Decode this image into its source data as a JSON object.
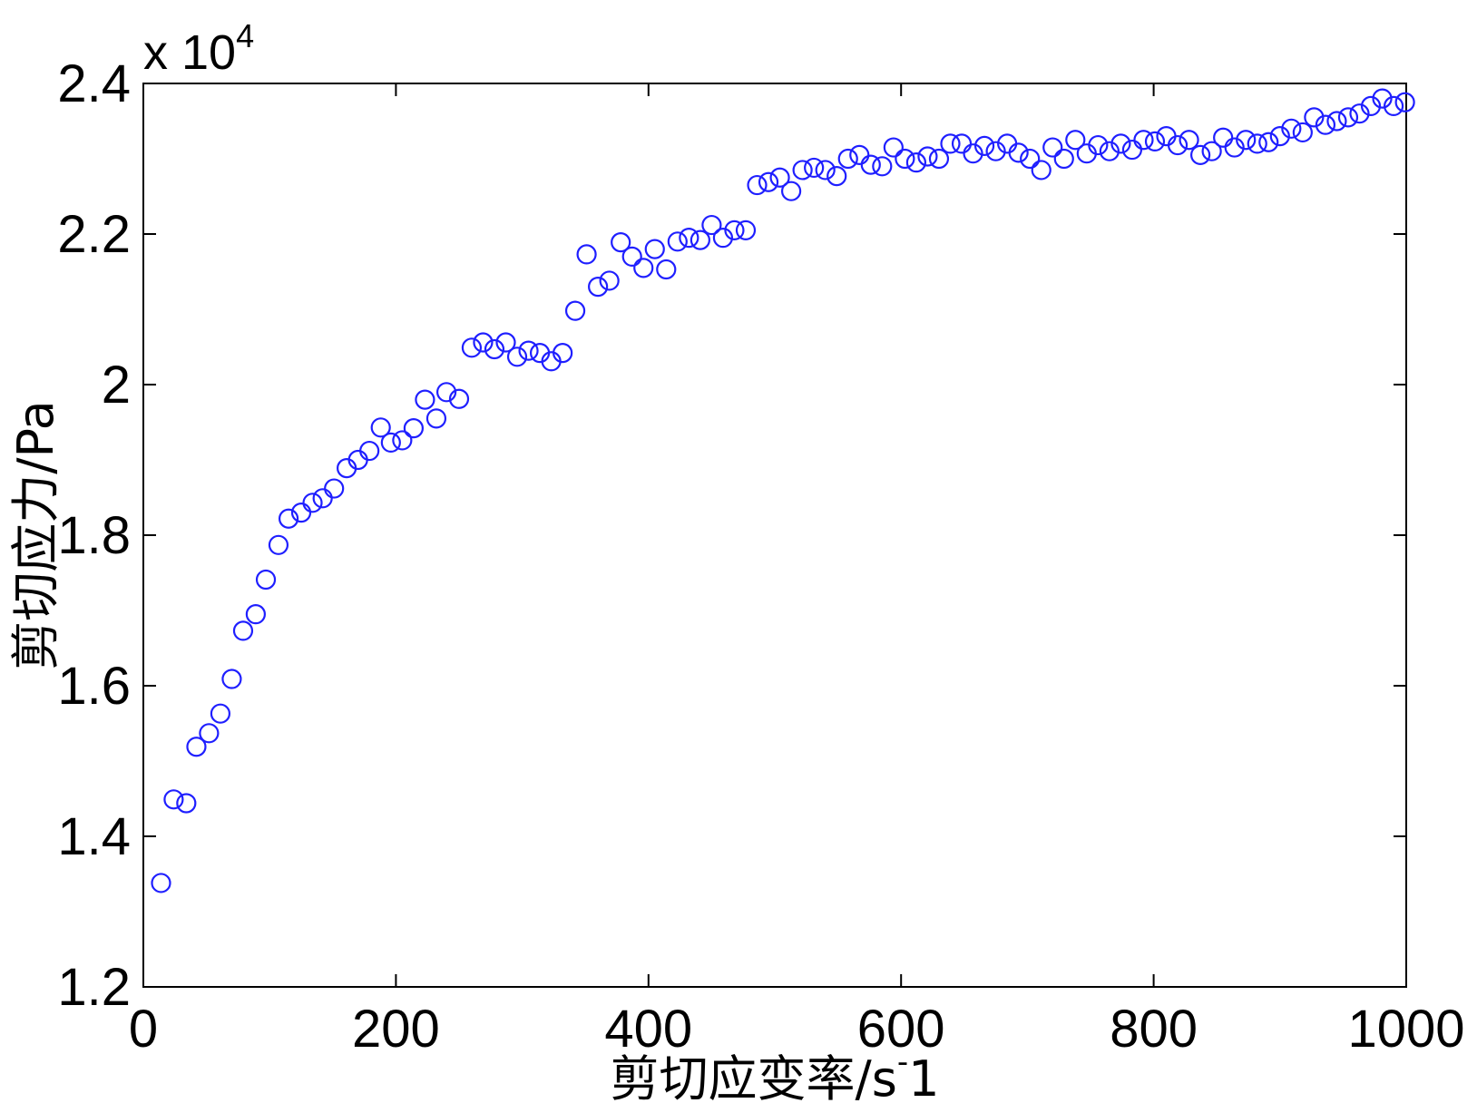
{
  "chart_data": {
    "type": "scatter",
    "title": "",
    "xlabel": "剪切应变率/s-1",
    "xlabel_main": "剪切应变率/s",
    "xlabel_sup": "-",
    "xlabel_tail": "1",
    "ylabel": "剪切应力/Pa",
    "y_exponent_prefix": "x 10",
    "y_exponent_power": "4",
    "xlim": [
      0,
      1000
    ],
    "ylim": [
      1.2,
      2.4
    ],
    "xticks": [
      "0",
      "200",
      "400",
      "600",
      "800",
      "1000"
    ],
    "yticks": [
      "1.2",
      "1.4",
      "1.6",
      "1.8",
      "2",
      "2.2",
      "2.4"
    ],
    "grid": false,
    "marker": "circle-open",
    "marker_color": "#1f1fff",
    "series": [
      {
        "x": [
          14,
          24,
          34,
          42,
          52,
          61,
          70,
          79,
          89,
          97,
          107,
          115,
          125,
          134,
          142,
          151,
          161,
          170,
          179,
          188,
          196,
          205,
          214,
          223,
          232,
          240,
          250,
          260,
          269,
          278,
          287,
          296,
          305,
          314,
          323,
          332,
          342,
          351,
          360,
          369,
          378,
          387,
          396,
          405,
          414,
          423,
          432,
          441,
          450,
          459,
          468,
          477,
          486,
          495,
          504,
          513,
          522,
          531,
          540,
          549,
          558,
          567,
          576,
          585,
          594,
          603,
          612,
          621,
          630,
          639,
          648,
          657,
          666,
          675,
          684,
          693,
          702,
          711,
          720,
          729,
          738,
          747,
          756,
          765,
          774,
          783,
          792,
          801,
          810,
          819,
          828,
          837,
          846,
          855,
          864,
          873,
          882,
          891,
          900,
          909,
          918,
          927,
          936,
          945,
          954,
          963,
          972,
          981,
          990,
          999
        ],
        "y": [
          1.338,
          1.449,
          1.444,
          1.519,
          1.537,
          1.563,
          1.609,
          1.673,
          1.695,
          1.741,
          1.787,
          1.822,
          1.83,
          1.843,
          1.849,
          1.862,
          1.889,
          1.9,
          1.912,
          1.943,
          1.923,
          1.926,
          1.942,
          1.98,
          1.955,
          1.99,
          1.981,
          2.049,
          2.056,
          2.047,
          2.056,
          2.037,
          2.045,
          2.042,
          2.031,
          2.042,
          2.098,
          2.173,
          2.13,
          2.138,
          2.189,
          2.17,
          2.155,
          2.18,
          2.153,
          2.19,
          2.195,
          2.192,
          2.212,
          2.195,
          2.205,
          2.205,
          2.265,
          2.269,
          2.275,
          2.257,
          2.285,
          2.288,
          2.285,
          2.277,
          2.3,
          2.305,
          2.292,
          2.29,
          2.315,
          2.3,
          2.295,
          2.303,
          2.3,
          2.32,
          2.32,
          2.307,
          2.317,
          2.31,
          2.32,
          2.308,
          2.3,
          2.285,
          2.315,
          2.3,
          2.325,
          2.307,
          2.318,
          2.31,
          2.32,
          2.312,
          2.325,
          2.323,
          2.33,
          2.318,
          2.325,
          2.305,
          2.31,
          2.328,
          2.315,
          2.325,
          2.32,
          2.322,
          2.33,
          2.34,
          2.335,
          2.355,
          2.345,
          2.35,
          2.355,
          2.36,
          2.37,
          2.38,
          2.37,
          2.375
        ]
      }
    ]
  }
}
